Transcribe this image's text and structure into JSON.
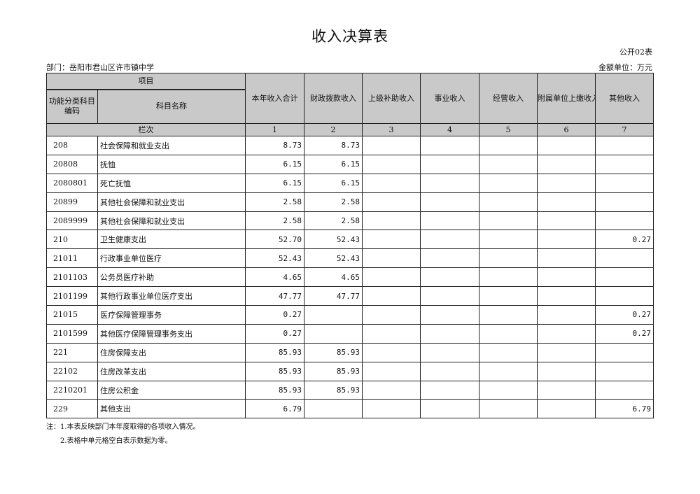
{
  "title": "收入决算表",
  "form_no": "公开02表",
  "department": "部门：岳阳市君山区许市镇中学",
  "unit": "金额单位：万元",
  "header": {
    "item": "项目",
    "code": "功能分类科目编码",
    "name": "科目名称",
    "cols": [
      "本年收入合计",
      "财政拨款收入",
      "上级补助收入",
      "事业收入",
      "经营收入",
      "附属单位上缴收入",
      "其他收入"
    ],
    "row_label": "栏次",
    "col_nums": [
      "1",
      "2",
      "3",
      "4",
      "5",
      "6",
      "7"
    ]
  },
  "rows": [
    {
      "code": "208",
      "name": "社会保障和就业支出",
      "v": [
        "8.73",
        "8.73",
        "",
        "",
        "",
        "",
        ""
      ]
    },
    {
      "code": "20808",
      "name": "抚恤",
      "v": [
        "6.15",
        "6.15",
        "",
        "",
        "",
        "",
        ""
      ]
    },
    {
      "code": "2080801",
      "name": "死亡抚恤",
      "v": [
        "6.15",
        "6.15",
        "",
        "",
        "",
        "",
        ""
      ]
    },
    {
      "code": "20899",
      "name": "其他社会保障和就业支出",
      "v": [
        "2.58",
        "2.58",
        "",
        "",
        "",
        "",
        ""
      ]
    },
    {
      "code": "2089999",
      "name": "其他社会保障和就业支出",
      "v": [
        "2.58",
        "2.58",
        "",
        "",
        "",
        "",
        ""
      ]
    },
    {
      "code": "210",
      "name": "卫生健康支出",
      "v": [
        "52.70",
        "52.43",
        "",
        "",
        "",
        "",
        "0.27"
      ]
    },
    {
      "code": "21011",
      "name": "行政事业单位医疗",
      "v": [
        "52.43",
        "52.43",
        "",
        "",
        "",
        "",
        ""
      ]
    },
    {
      "code": "2101103",
      "name": "公务员医疗补助",
      "v": [
        "4.65",
        "4.65",
        "",
        "",
        "",
        "",
        ""
      ]
    },
    {
      "code": "2101199",
      "name": "其他行政事业单位医疗支出",
      "v": [
        "47.77",
        "47.77",
        "",
        "",
        "",
        "",
        ""
      ]
    },
    {
      "code": "21015",
      "name": "医疗保障管理事务",
      "v": [
        "0.27",
        "",
        "",
        "",
        "",
        "",
        "0.27"
      ]
    },
    {
      "code": "2101599",
      "name": "其他医疗保障管理事务支出",
      "v": [
        "0.27",
        "",
        "",
        "",
        "",
        "",
        "0.27"
      ]
    },
    {
      "code": "221",
      "name": "住房保障支出",
      "v": [
        "85.93",
        "85.93",
        "",
        "",
        "",
        "",
        ""
      ]
    },
    {
      "code": "22102",
      "name": "住房改革支出",
      "v": [
        "85.93",
        "85.93",
        "",
        "",
        "",
        "",
        ""
      ]
    },
    {
      "code": "2210201",
      "name": "住房公积金",
      "v": [
        "85.93",
        "85.93",
        "",
        "",
        "",
        "",
        ""
      ]
    },
    {
      "code": "229",
      "name": "其他支出",
      "v": [
        "6.79",
        "",
        "",
        "",
        "",
        "",
        "6.79"
      ]
    }
  ],
  "notes": [
    "注：1.本表反映部门本年度取得的各项收入情况。",
    "2.表格中单元格空白表示数据为零。"
  ]
}
